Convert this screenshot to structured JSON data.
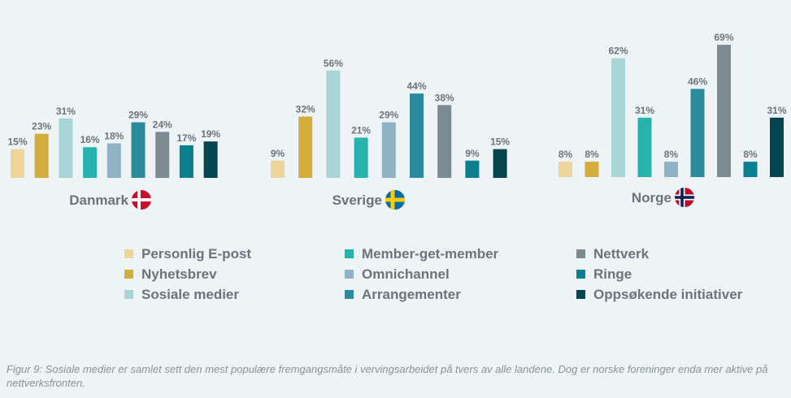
{
  "chart_data": {
    "type": "bar",
    "series": [
      {
        "name": "Personlig E-post",
        "color": "#ecd49a"
      },
      {
        "name": "Nyhetsbrev",
        "color": "#d4ac3c"
      },
      {
        "name": "Sosiale medier",
        "color": "#a7d5d6"
      },
      {
        "name": "Member-get-member",
        "color": "#27b3ad"
      },
      {
        "name": "Omnichannel",
        "color": "#8fb3c4"
      },
      {
        "name": "Arrangementer",
        "color": "#2b8a9b"
      },
      {
        "name": "Nettverk",
        "color": "#7b8b91"
      },
      {
        "name": "Ringe",
        "color": "#0a7f8e"
      },
      {
        "name": "Oppsøkende initiativer",
        "color": "#05454f"
      }
    ],
    "groups": [
      {
        "country": "Danmark",
        "flag": "denmark-flag",
        "values": [
          15,
          23,
          31,
          16,
          18,
          29,
          24,
          17,
          19
        ],
        "labels": [
          "15%",
          "23%",
          "31%",
          "16%",
          "18%",
          "29%",
          "24%",
          "17%",
          "19%"
        ]
      },
      {
        "country": "Sverige",
        "flag": "sweden-flag",
        "values": [
          9,
          32,
          56,
          21,
          29,
          44,
          38,
          9,
          15
        ],
        "labels": [
          "9%",
          "32%",
          "56%",
          "21%",
          "29%",
          "44%",
          "38%",
          "9%",
          "15%"
        ]
      },
      {
        "country": "Norge",
        "flag": "norway-flag",
        "values": [
          8,
          8,
          62,
          31,
          8,
          46,
          69,
          8,
          31
        ],
        "labels": [
          "8%",
          "8%",
          "62%",
          "31%",
          "8%",
          "46%",
          "69%",
          "8%",
          "31%"
        ]
      }
    ],
    "unit": "%",
    "ylim": [
      0,
      70
    ]
  },
  "caption": "Figur 9: Sosiale medier er samlet sett den mest populære fremgangsmåte i vervingsarbeidet på tvers av alle landene. Dog er norske foreninger enda mer aktive på nettverksfronten."
}
